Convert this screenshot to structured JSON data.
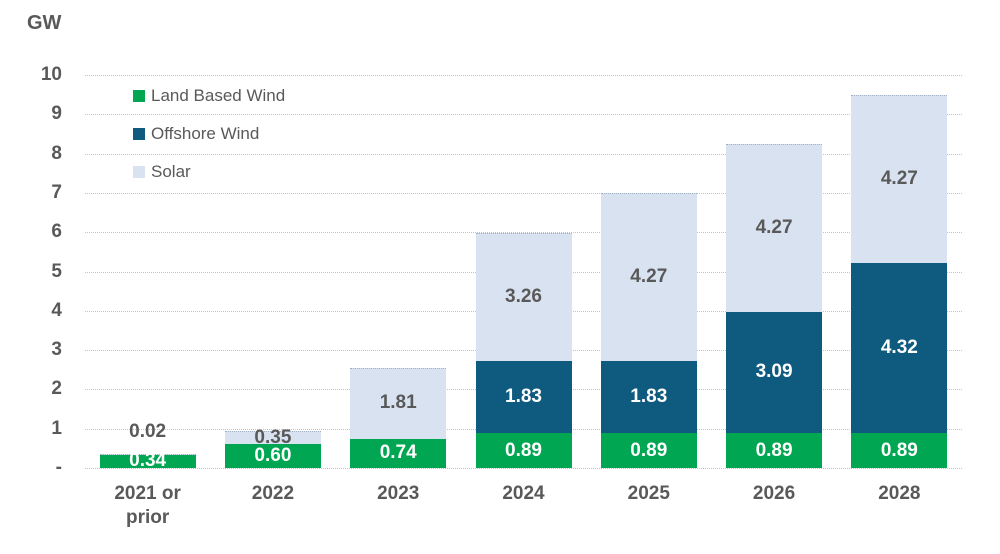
{
  "axis_title": "GW",
  "colors": {
    "land_based_wind": "#00A651",
    "offshore_wind": "#0E5B7F",
    "solar": "#D9E2F0",
    "text_gray": "#595959",
    "label_white": "#FFFFFF",
    "gridline": "#C3C3C3"
  },
  "chart_data": {
    "type": "bar",
    "stacked": true,
    "title": "",
    "ylabel": "GW",
    "xlabel": "",
    "ylim": [
      0,
      10
    ],
    "ytick_values": [
      10,
      9,
      8,
      7,
      6,
      5,
      4,
      3,
      2,
      1,
      0
    ],
    "ytick_labels": [
      "10",
      "9",
      "8",
      "7",
      "6",
      "5",
      "4",
      "3",
      "2",
      "1",
      "-"
    ],
    "grid": "horizontal-dotted",
    "legend_position": "top-left-inside",
    "categories": [
      "2021 or prior",
      "2022",
      "2023",
      "2024",
      "2025",
      "2026",
      "2028"
    ],
    "series": [
      {
        "name": "Land Based Wind",
        "color": "#00A651",
        "label_color": "#FFFFFF",
        "border_top": false,
        "values": [
          0.34,
          0.6,
          0.74,
          0.89,
          0.89,
          0.89,
          0.89
        ],
        "labels": [
          "0.34",
          "0.60",
          "0.74",
          "0.89",
          "0.89",
          "0.89",
          "0.89"
        ]
      },
      {
        "name": "Offshore Wind",
        "color": "#0E5B7F",
        "label_color": "#FFFFFF",
        "border_top": false,
        "values": [
          0,
          0,
          0,
          1.83,
          1.83,
          3.09,
          4.32
        ],
        "labels": [
          "",
          "",
          "",
          "1.83",
          "1.83",
          "3.09",
          "4.32"
        ]
      },
      {
        "name": "Solar",
        "color": "#D9E2F0",
        "label_color": "#595959",
        "border_top": true,
        "values": [
          0.02,
          0.35,
          1.81,
          3.26,
          4.27,
          4.27,
          4.27
        ],
        "labels": [
          "0.02",
          "0.35",
          "1.81",
          "3.26",
          "4.27",
          "4.27",
          "4.27"
        ]
      }
    ]
  }
}
